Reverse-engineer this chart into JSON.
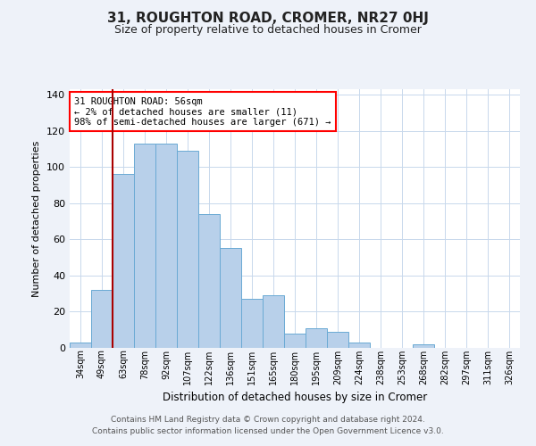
{
  "title": "31, ROUGHTON ROAD, CROMER, NR27 0HJ",
  "subtitle": "Size of property relative to detached houses in Cromer",
  "xlabel": "Distribution of detached houses by size in Cromer",
  "ylabel": "Number of detached properties",
  "bar_labels": [
    "34sqm",
    "49sqm",
    "63sqm",
    "78sqm",
    "92sqm",
    "107sqm",
    "122sqm",
    "136sqm",
    "151sqm",
    "165sqm",
    "180sqm",
    "195sqm",
    "209sqm",
    "224sqm",
    "238sqm",
    "253sqm",
    "268sqm",
    "282sqm",
    "297sqm",
    "311sqm",
    "326sqm"
  ],
  "bar_values": [
    3,
    32,
    96,
    113,
    113,
    109,
    74,
    55,
    27,
    29,
    8,
    11,
    9,
    3,
    0,
    0,
    2,
    0,
    0,
    0,
    0
  ],
  "bar_color": "#b8d0ea",
  "bar_edge_color": "#6aaad4",
  "ylim": [
    0,
    143
  ],
  "yticks": [
    0,
    20,
    40,
    60,
    80,
    100,
    120,
    140
  ],
  "annotation_line1": "31 ROUGHTON ROAD: 56sqm",
  "annotation_line2": "← 2% of detached houses are smaller (11)",
  "annotation_line3": "98% of semi-detached houses are larger (671) →",
  "footer_line1": "Contains HM Land Registry data © Crown copyright and database right 2024.",
  "footer_line2": "Contains public sector information licensed under the Open Government Licence v3.0.",
  "background_color": "#eef2f9",
  "plot_bg_color": "#ffffff",
  "grid_color": "#c8d8ec",
  "red_line_color": "#aa0000",
  "title_fontsize": 11,
  "subtitle_fontsize": 9,
  "ylabel_fontsize": 8,
  "xlabel_fontsize": 8.5,
  "tick_fontsize": 7,
  "annotation_fontsize": 7.5,
  "footer_fontsize": 6.5
}
